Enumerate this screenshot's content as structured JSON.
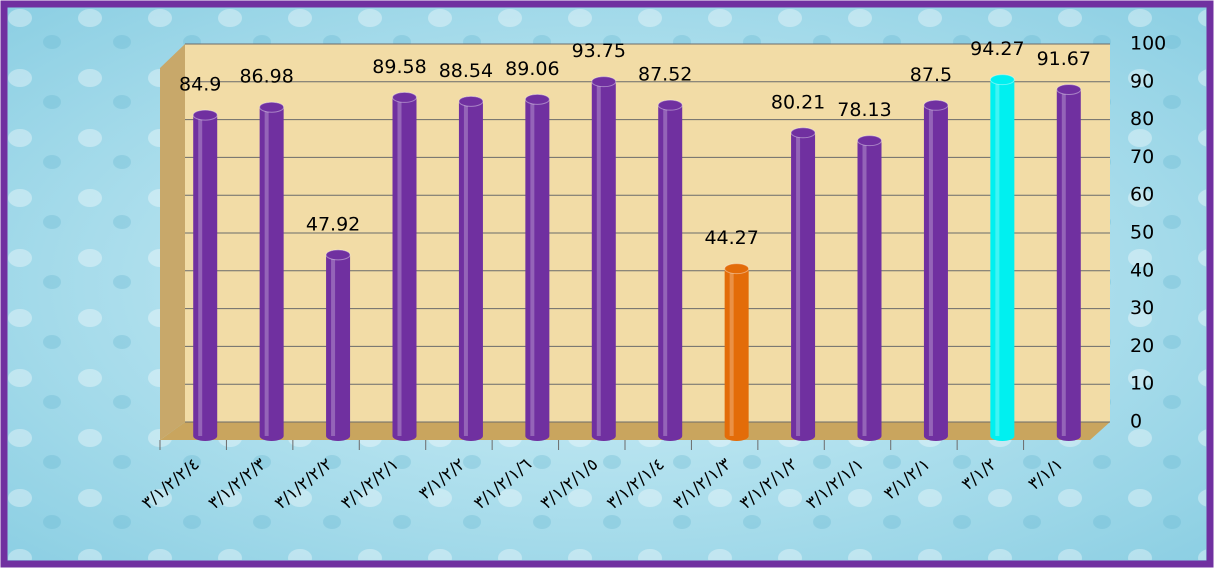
{
  "chart_data": {
    "type": "bar",
    "categories": [
      "٣/١/٢/٢/٤",
      "٣/١/٢/٢/٣",
      "٣/١/٢/٢/٢",
      "٣/١/٢/٢/١",
      "٣/١/٢/٢",
      "٣/١/٢/١/٦",
      "٣/١/٢/١/٥",
      "٣/١/٢/١/٤",
      "٣/١/٢/١/٣",
      "٣/١/٢/١/٢",
      "٣/١/٢/١/١",
      "٣/١/٢/١",
      "٣/١/٢",
      "٣/١/١"
    ],
    "values": [
      84.9,
      86.98,
      47.92,
      89.58,
      88.54,
      89.06,
      93.75,
      87.52,
      44.27,
      80.21,
      78.13,
      87.5,
      94.27,
      91.67
    ],
    "colors": [
      "#7030a0",
      "#7030a0",
      "#7030a0",
      "#7030a0",
      "#7030a0",
      "#7030a0",
      "#7030a0",
      "#7030a0",
      "#e36c09",
      "#7030a0",
      "#7030a0",
      "#7030a0",
      "#00f0f0",
      "#7030a0"
    ],
    "ylim": [
      0,
      100
    ],
    "yticks": [
      0,
      10,
      20,
      30,
      40,
      50,
      60,
      70,
      80,
      90,
      100
    ],
    "grid": true
  }
}
